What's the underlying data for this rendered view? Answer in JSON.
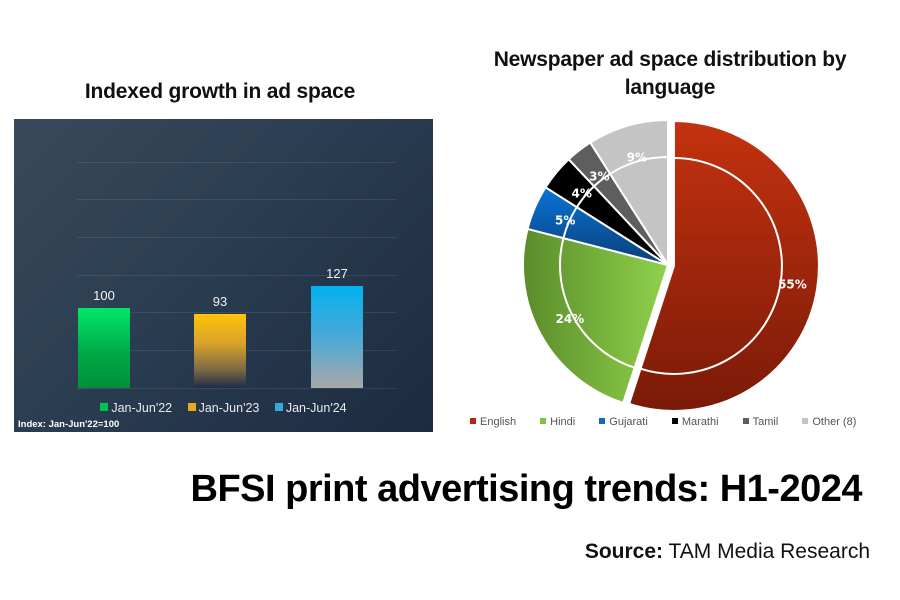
{
  "headline": "BFSI print advertising trends: H1-2024",
  "source": {
    "label": "Source:",
    "value": "TAM Media Research"
  },
  "chart_data": [
    {
      "type": "bar",
      "title": "Indexed growth in ad space",
      "categories": [
        "Jan-Jun'22",
        "Jan-Jun'23",
        "Jan-Jun'24"
      ],
      "values": [
        100,
        93,
        127
      ],
      "value_labels": [
        "100",
        "93",
        "127"
      ],
      "xlabel": "",
      "ylabel": "",
      "ylim": [
        0,
        140
      ],
      "grid": true,
      "legend": {
        "position": "bottom",
        "entries": [
          "Jan-Jun'22",
          "Jan-Jun'23",
          "Jan-Jun'24"
        ]
      },
      "colors": [
        "#00e060",
        "#ffc107",
        "#03b0f0"
      ],
      "annotation": "Index: Jan-Jun'22=100"
    },
    {
      "type": "pie",
      "title": "Newspaper ad space distribution by language",
      "categories": [
        "English",
        "Hindi",
        "Gujarati",
        "Marathi",
        "Tamil",
        "Other (8)"
      ],
      "values": [
        55,
        24,
        5,
        4,
        3,
        9
      ],
      "value_labels": [
        "55%",
        "24%",
        "5%",
        "4%",
        "3%",
        "9%"
      ],
      "colors": [
        "#b5260c",
        "#7ec142",
        "#0b6cc7",
        "#000000",
        "#5e5e5e",
        "#c4c4c4"
      ],
      "legend": {
        "position": "bottom",
        "entries": [
          "English",
          "Hindi",
          "Gujarati",
          "Marathi",
          "Tamil",
          "Other (8)"
        ]
      },
      "exploded": [
        "English"
      ]
    }
  ]
}
